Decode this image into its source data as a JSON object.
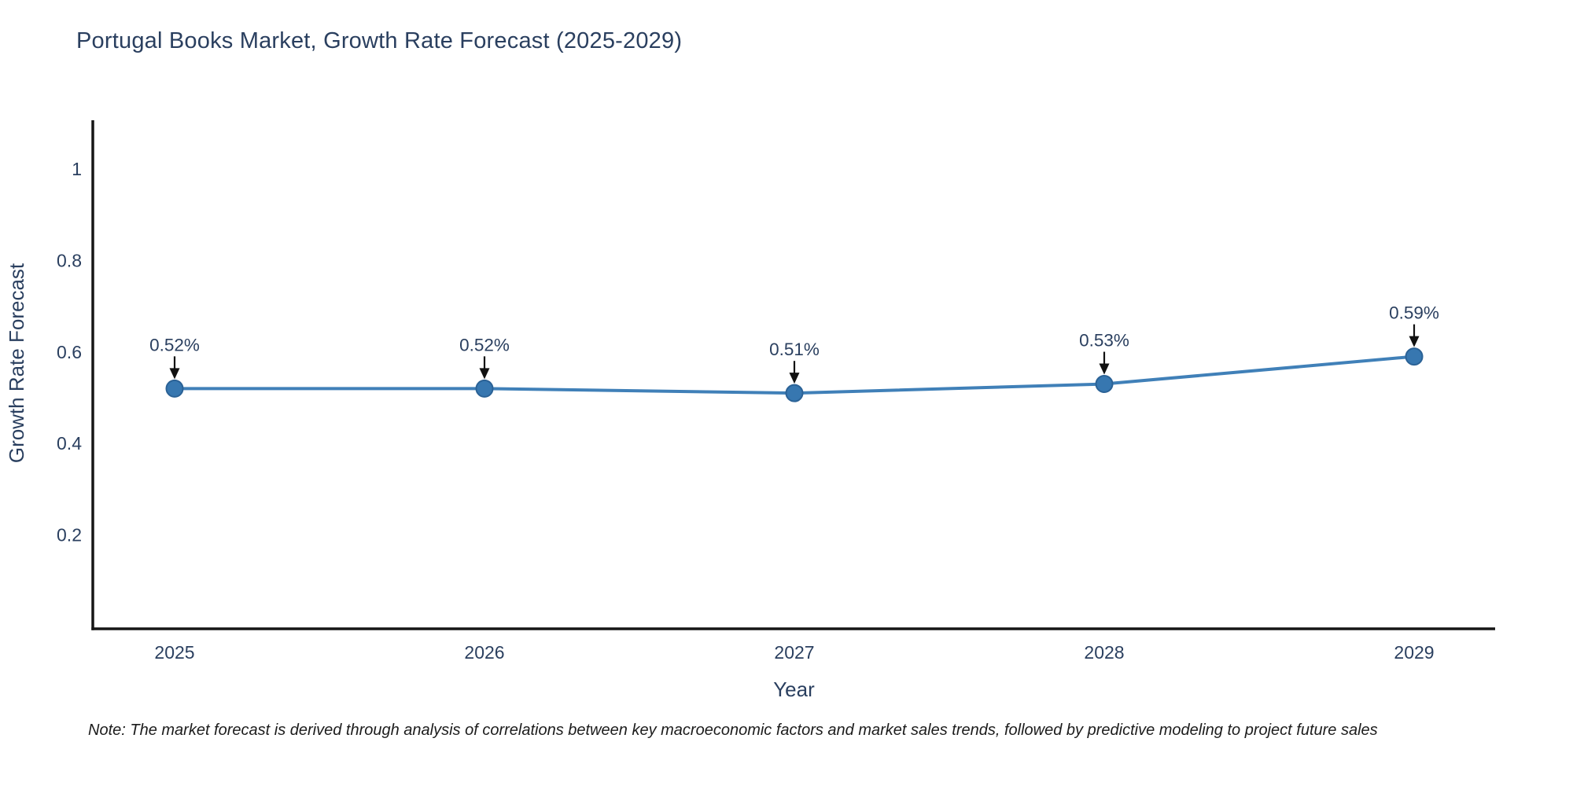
{
  "page": {
    "note": "Note: The market forecast is derived through analysis of correlations between key macroeconomic factors and market sales trends, followed by predictive modeling to project future sales"
  },
  "chart_data": {
    "type": "line",
    "title": "Portugal Books Market, Growth Rate Forecast (2025-2029)",
    "xlabel": "Year",
    "ylabel": "Growth Rate Forecast",
    "x_categories": [
      "2025",
      "2026",
      "2027",
      "2028",
      "2029"
    ],
    "series": [
      {
        "name": "Growth Rate Forecast",
        "values": [
          0.52,
          0.52,
          0.51,
          0.53,
          0.59
        ]
      }
    ],
    "point_labels": [
      "0.52%",
      "0.52%",
      "0.51%",
      "0.53%",
      "0.59%"
    ],
    "y_ticks": [
      {
        "value": 0.2,
        "label": "0.2"
      },
      {
        "value": 0.4,
        "label": "0.4"
      },
      {
        "value": 0.6,
        "label": "0.6"
      },
      {
        "value": 0.8,
        "label": "0.8"
      },
      {
        "value": 1.0,
        "label": "1"
      }
    ],
    "ylim": [
      0,
      1.12
    ],
    "grid": false,
    "legend": "none",
    "colors": {
      "line": "#4080b8",
      "marker": "#3777b0",
      "marker_edge": "#2b6296",
      "axis": "#161616",
      "text": "#2a3f5f",
      "arrow": "#111111",
      "note_text": "#1c1c1c",
      "background": "#ffffff"
    }
  }
}
